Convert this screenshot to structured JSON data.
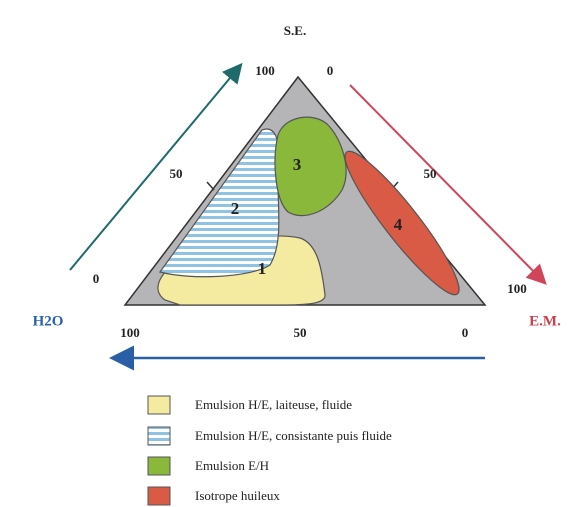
{
  "vertices": {
    "top": "S.E.",
    "left": "H2O",
    "right": "E.M."
  },
  "left_side_ticks": [
    "100",
    "50",
    "0"
  ],
  "right_side_ticks": [
    "0",
    "50",
    "100"
  ],
  "bottom_ticks": [
    "100",
    "50",
    "0"
  ],
  "regions": [
    "1",
    "2",
    "3",
    "4"
  ],
  "legend": [
    "Emulsion H/E, laiteuse, fluide",
    "Emulsion H/E, consistante puis fluide",
    "Emulsion E/H",
    "Isotrope huileux"
  ]
}
